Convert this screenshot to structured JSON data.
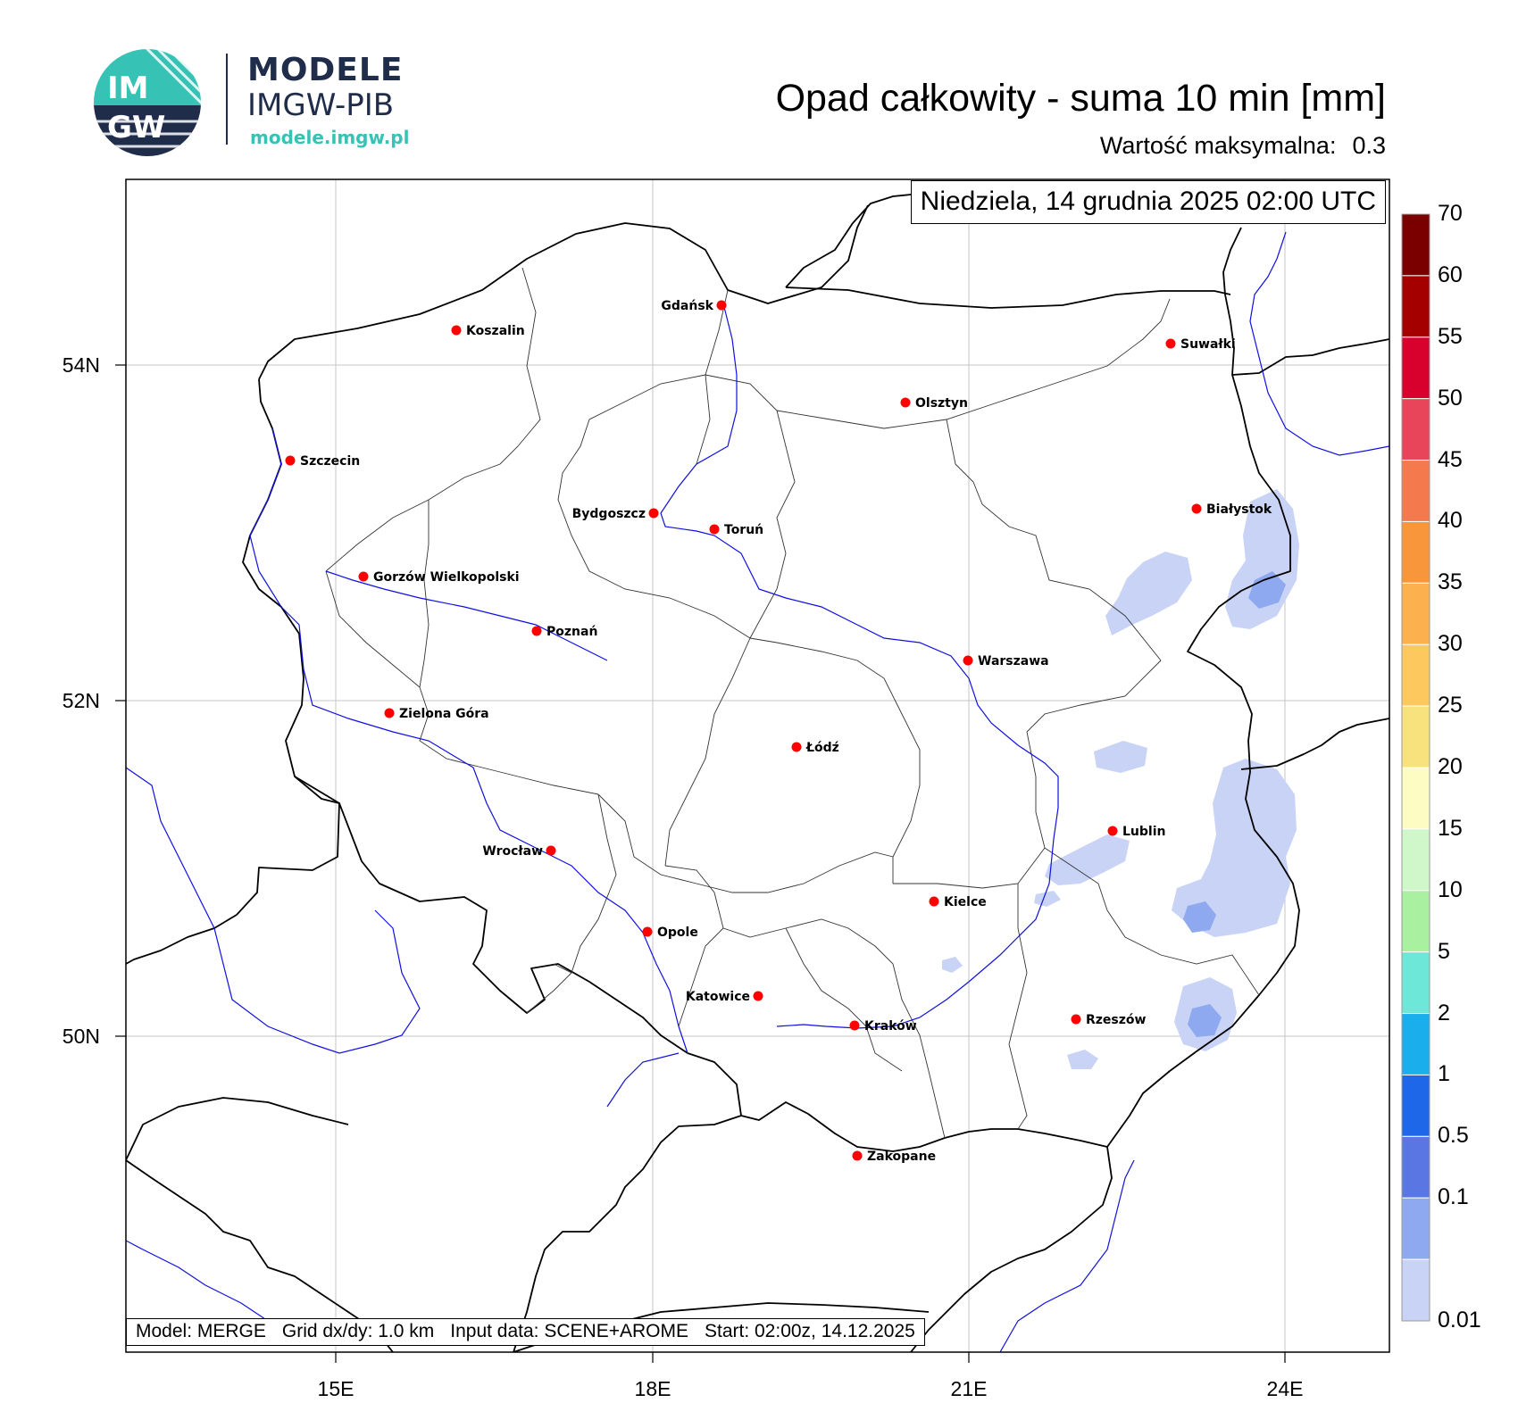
{
  "branding": {
    "logo_text": "IMGW",
    "name_line1": "MODELE",
    "name_line2": "IMGW-PIB",
    "url": "modele.imgw.pl"
  },
  "header": {
    "title": "Opad całkowity - suma 10 min [mm]",
    "max_label": "Wartość maksymalna:",
    "max_value": "0.3",
    "datetime": "Niedziela, 14 grudnia 2025 02:00 UTC"
  },
  "axes": {
    "lon_ticks": [
      "15E",
      "18E",
      "21E",
      "24E"
    ],
    "lat_ticks": [
      "54N",
      "52N",
      "50N"
    ]
  },
  "footer": {
    "model": "Model: MERGE",
    "grid": "Grid dx/dy: 1.0 km",
    "input": "Input data: SCENE+AROME",
    "start": "Start: 02:00z, 14.12.2025"
  },
  "colorbar": {
    "labels": [
      "70",
      "60",
      "55",
      "50",
      "45",
      "40",
      "35",
      "30",
      "25",
      "20",
      "15",
      "10",
      "5",
      "2",
      "1",
      "0.5",
      "0.1",
      "0.01"
    ],
    "colors": [
      "#7a0000",
      "#a50000",
      "#d8002d",
      "#e9455a",
      "#f47a4e",
      "#f8963c",
      "#fcb04e",
      "#fdc85e",
      "#f8e27e",
      "#fdfcc3",
      "#cff7ca",
      "#a9f0a0",
      "#6de8d8",
      "#1aaeec",
      "#1d67e8",
      "#5a76e2",
      "#8ea9ef",
      "#c8d3f5"
    ]
  },
  "cities": [
    {
      "name": "Gdańsk"
    },
    {
      "name": "Koszalin"
    },
    {
      "name": "Suwałki"
    },
    {
      "name": "Olsztyn"
    },
    {
      "name": "Szczecin"
    },
    {
      "name": "Białystok"
    },
    {
      "name": "Bydgoszcz"
    },
    {
      "name": "Toruń"
    },
    {
      "name": "Gorzów Wielkopolski"
    },
    {
      "name": "Poznań"
    },
    {
      "name": "Warszawa"
    },
    {
      "name": "Zielona Góra"
    },
    {
      "name": "Łódź"
    },
    {
      "name": "Lublin"
    },
    {
      "name": "Wrocław"
    },
    {
      "name": "Kielce"
    },
    {
      "name": "Opole"
    },
    {
      "name": "Katowice"
    },
    {
      "name": "Kraków"
    },
    {
      "name": "Rzeszów"
    },
    {
      "name": "Zakopane"
    }
  ]
}
